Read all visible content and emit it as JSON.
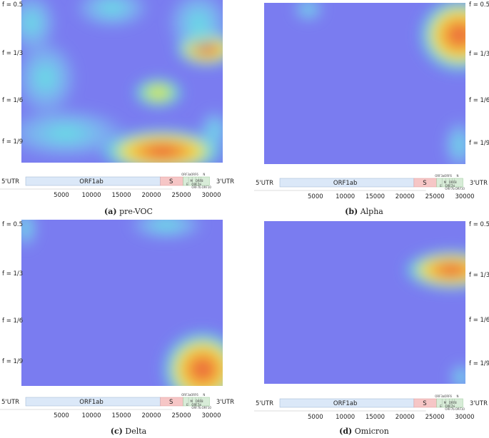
{
  "chart_data": [
    {
      "type": "heatmap",
      "id": "a",
      "caption_letter": "(a)",
      "caption_name": "pre-VOC",
      "y_labels": [
        "f = 0.5",
        "f = 1/3",
        "f = 1/6",
        "f = 1/9"
      ],
      "y_label_side": "right",
      "x_ticks": [
        "5000",
        "10000",
        "15000",
        "20000",
        "25000",
        "30000"
      ],
      "base_level": 0.25,
      "hotspots": [
        {
          "x": 0.92,
          "y": 0.3,
          "rx": 0.1,
          "ry": 0.07,
          "v": 1.0
        },
        {
          "x": 0.88,
          "y": 0.14,
          "rx": 0.1,
          "ry": 0.13,
          "v": 0.55
        },
        {
          "x": 0.7,
          "y": 0.93,
          "rx": 0.2,
          "ry": 0.09,
          "v": 0.85
        },
        {
          "x": 0.68,
          "y": 0.57,
          "rx": 0.08,
          "ry": 0.06,
          "v": 0.62
        },
        {
          "x": 0.05,
          "y": 0.14,
          "rx": 0.08,
          "ry": 0.12,
          "v": 0.55
        },
        {
          "x": 0.12,
          "y": 0.48,
          "rx": 0.1,
          "ry": 0.15,
          "v": 0.52
        },
        {
          "x": 0.22,
          "y": 0.82,
          "rx": 0.2,
          "ry": 0.1,
          "v": 0.5
        },
        {
          "x": 0.45,
          "y": 0.05,
          "rx": 0.12,
          "ry": 0.08,
          "v": 0.5
        },
        {
          "x": 0.96,
          "y": 0.8,
          "rx": 0.05,
          "ry": 0.08,
          "v": 0.5
        }
      ]
    },
    {
      "type": "heatmap",
      "id": "b",
      "caption_letter": "(b)",
      "caption_name": "Alpha",
      "y_labels": [
        "f = 0.5",
        "f = 1/3",
        "f = 1/6",
        "f = 1/9"
      ],
      "y_label_side": "right",
      "x_ticks": [
        "5000",
        "10000",
        "15000",
        "20000",
        "25000",
        "30000"
      ],
      "base_level": 0.25,
      "hotspots": [
        {
          "x": 0.97,
          "y": 0.2,
          "rx": 0.13,
          "ry": 0.15,
          "v": 1.0
        },
        {
          "x": 0.22,
          "y": 0.04,
          "rx": 0.05,
          "ry": 0.05,
          "v": 0.42
        },
        {
          "x": 0.97,
          "y": 0.88,
          "rx": 0.05,
          "ry": 0.1,
          "v": 0.5
        }
      ]
    },
    {
      "type": "heatmap",
      "id": "c",
      "caption_letter": "(c)",
      "caption_name": "Delta",
      "y_labels": [
        "f = 0.5",
        "f = 1/3",
        "f = 1/6",
        "f = 1/9"
      ],
      "y_label_side": "left",
      "x_ticks": [
        "5000",
        "10000",
        "15000",
        "20000",
        "25000",
        "30000"
      ],
      "base_level": 0.25,
      "hotspots": [
        {
          "x": 0.9,
          "y": 0.9,
          "rx": 0.13,
          "ry": 0.15,
          "v": 1.0
        },
        {
          "x": 0.72,
          "y": 0.03,
          "rx": 0.12,
          "ry": 0.06,
          "v": 0.55
        },
        {
          "x": 0.02,
          "y": 0.05,
          "rx": 0.04,
          "ry": 0.08,
          "v": 0.5
        }
      ]
    },
    {
      "type": "heatmap",
      "id": "d",
      "caption_letter": "(d)",
      "caption_name": "Omicron",
      "y_labels": [
        "f = 0.5",
        "f = 1/3",
        "f = 1/6",
        "f = 1/9"
      ],
      "y_label_side": "right",
      "x_ticks": [
        "5000",
        "10000",
        "15000",
        "20000",
        "25000",
        "30000"
      ],
      "base_level": 0.25,
      "hotspots": [
        {
          "x": 0.93,
          "y": 0.3,
          "rx": 0.15,
          "ry": 0.08,
          "v": 1.0
        },
        {
          "x": 0.98,
          "y": 0.96,
          "rx": 0.04,
          "ry": 0.06,
          "v": 0.45
        }
      ]
    }
  ],
  "genome": {
    "left_label": "5'UTR",
    "right_label": "3'UTR",
    "orf1ab_label": "ORF1ab",
    "s_label": "S",
    "small_labels": [
      "ORF3a",
      "ORF6",
      "N",
      "M",
      "ORF8",
      "E",
      "ORF7a",
      "ORF7b",
      "ORF10"
    ],
    "colors": {
      "orf1ab": "#dbe8f8",
      "s": "#f6c6c6",
      "accessory": "#d8ecd8",
      "border": "#9bb3d0"
    }
  },
  "colors": {
    "low": "#7a7cf0",
    "mid": "#5ff0e0",
    "high": "#e84a3a"
  }
}
